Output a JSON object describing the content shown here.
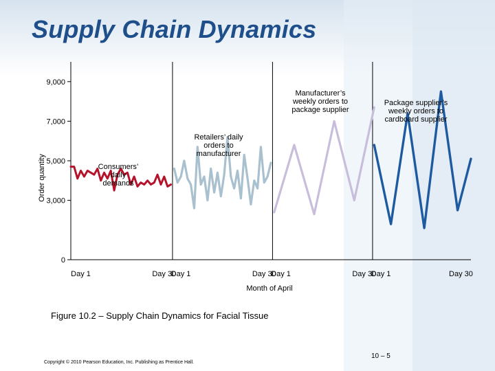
{
  "page": {
    "title": "Supply Chain Dynamics",
    "caption": "Figure 10.2 – Supply Chain Dynamics for Facial Tissue",
    "page_number": "10 – 5",
    "copyright": "Copyright © 2010 Pearson Education, Inc. Publishing as Prentice Hall."
  },
  "chart_data": {
    "type": "line",
    "title": "",
    "ylabel": "Order quantity",
    "xlabel": "Month of April",
    "ylim": [
      0,
      10000
    ],
    "yticks": [
      0,
      3000,
      5000,
      7000,
      9000
    ],
    "ytick_labels": [
      "0",
      "3,000",
      "5,000",
      "7,000",
      "9,000"
    ],
    "grid": false,
    "xlim": [
      0,
      120
    ],
    "xtick_labels": [
      {
        "x": 3,
        "label": "Day 1"
      },
      {
        "x": 28,
        "label": "Day 30"
      },
      {
        "x": 33,
        "label": "Day 1"
      },
      {
        "x": 58,
        "label": "Day 30"
      },
      {
        "x": 63,
        "label": "Day 1"
      },
      {
        "x": 88,
        "label": "Day 30"
      },
      {
        "x": 93,
        "label": "Day 1"
      },
      {
        "x": 117,
        "label": "Day 30"
      }
    ],
    "separators": [
      30.5,
      60.5,
      90.5
    ],
    "series": [
      {
        "name": "Consumers’ daily demands",
        "color": "#b5122b",
        "x": [
          0,
          1,
          2,
          3,
          4,
          5,
          6,
          7,
          8,
          9,
          10,
          11,
          12,
          13,
          14,
          15,
          16,
          17,
          18,
          19,
          20,
          21,
          22,
          23,
          24,
          25,
          26,
          27,
          28,
          29,
          30
        ],
        "values": [
          4700,
          4700,
          4100,
          4500,
          4200,
          4500,
          4400,
          4300,
          4600,
          4000,
          4400,
          4100,
          4500,
          3500,
          4300,
          4600,
          4300,
          4400,
          3800,
          4200,
          3700,
          3900,
          3800,
          4000,
          3800,
          3900,
          4300,
          3800,
          4200,
          3700,
          3800
        ]
      },
      {
        "name": "Retailers’ daily orders to manufacturer",
        "color": "#a9c0cf",
        "x": [
          31,
          32,
          33,
          34,
          35,
          36,
          37,
          38,
          39,
          40,
          41,
          42,
          43,
          44,
          45,
          46,
          47,
          48,
          49,
          50,
          51,
          52,
          53,
          54,
          55,
          56,
          57,
          58,
          59,
          60
        ],
        "values": [
          4600,
          3900,
          4200,
          5000,
          4100,
          3800,
          2600,
          5700,
          3800,
          4200,
          3000,
          4600,
          3400,
          4400,
          3200,
          4300,
          6200,
          4200,
          3600,
          4500,
          3100,
          5300,
          4100,
          2800,
          4000,
          3600,
          5700,
          3900,
          4200,
          4900
        ]
      },
      {
        "name": "Manufacturer’s weekly orders to package supplier",
        "color": "#c8bedc",
        "x": [
          61,
          67,
          73,
          79,
          85,
          91
        ],
        "values": [
          2400,
          5800,
          2300,
          7000,
          3000,
          7700
        ]
      },
      {
        "name": "Package supplier’s weekly orders to cardboard supplier",
        "color": "#1e5aa0",
        "x": [
          91,
          96,
          101,
          106,
          111,
          116,
          120
        ],
        "values": [
          5800,
          1800,
          7400,
          1600,
          8500,
          2500,
          5100
        ]
      }
    ],
    "annotations": [
      {
        "text": [
          "Consumers’",
          "daily",
          "demands"
        ]
      },
      {
        "text": [
          "Retailers’ daily",
          "orders to",
          "manufacturer"
        ]
      },
      {
        "text": [
          "Manufacturer’s",
          "weekly orders to",
          "package supplier"
        ]
      },
      {
        "text": [
          "Package supplier’s",
          "weekly orders to",
          "cardboard supplier"
        ]
      }
    ]
  }
}
